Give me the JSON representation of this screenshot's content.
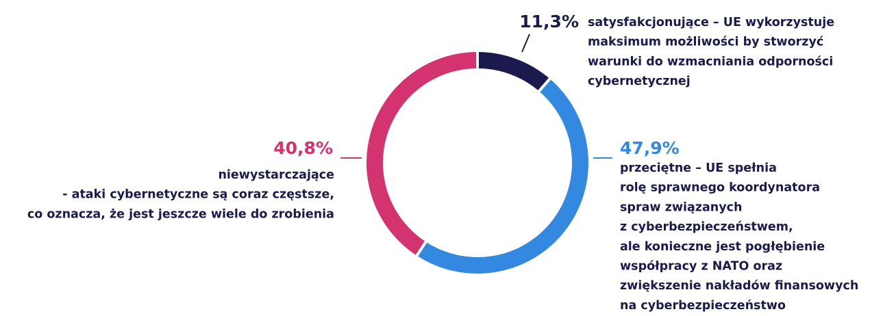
{
  "chart_data": {
    "type": "donut",
    "categories": [
      "satysfakcjonujące – UE wykorzystuje\nmaksimum możliwości by stworzyć\nwarunki do wzmacniania odporności\ncybernetycznej",
      "przeciętne – UE spełnia\nrolę sprawnego koordynatora\nspraw związanych\nz cyberbezpieczeństwem,\nale konieczne jest pogłębienie\nwspółpracy z NATO oraz\nzwiększenie nakładów finansowych\nna cyberbezpieczeństwo",
      "niewystarczające\n- ataki cybernetyczne są coraz częstsze,\nco oznacza, że jest jeszcze wiele do zrobienia"
    ],
    "values": [
      11.3,
      47.9,
      40.8
    ],
    "value_labels": [
      "11,3%",
      "47,9%",
      "40,8%"
    ],
    "colors": [
      "#1b1a4f",
      "#3389e0",
      "#d3336f"
    ]
  }
}
